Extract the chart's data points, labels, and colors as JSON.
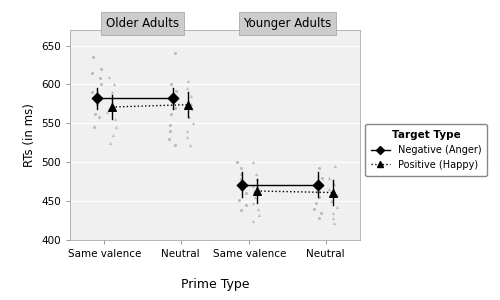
{
  "panels": [
    "Older Adults",
    "Younger Adults"
  ],
  "x_labels": [
    "Same valence",
    "Neutral"
  ],
  "ylabel": "RTs (in ms)",
  "xlabel": "Prime Type",
  "ylim": [
    400,
    670
  ],
  "yticks": [
    400,
    450,
    500,
    550,
    600,
    650
  ],
  "plot_bg": "#f0f0f0",
  "strip_bg": "#cccccc",
  "grid_color": "#ffffff",
  "scatter_color": "#bbbbbb",
  "older": {
    "negative": {
      "means": [
        582,
        582
      ],
      "ci_low": [
        568,
        568
      ],
      "ci_high": [
        596,
        596
      ],
      "scatter_x0": [
        545,
        558,
        562,
        575,
        590,
        600,
        608,
        615,
        620,
        635
      ],
      "scatter_x1": [
        522,
        530,
        540,
        548,
        562,
        570,
        582,
        592,
        600,
        640
      ]
    },
    "positive": {
      "means": [
        571,
        574
      ],
      "ci_low": [
        555,
        558
      ],
      "ci_high": [
        587,
        590
      ],
      "scatter_x0": [
        525,
        535,
        545,
        555,
        565,
        575,
        582,
        590,
        600,
        610
      ],
      "scatter_x1": [
        522,
        532,
        540,
        550,
        558,
        568,
        575,
        585,
        595,
        605
      ]
    }
  },
  "younger": {
    "negative": {
      "means": [
        471,
        471
      ],
      "ci_low": [
        455,
        455
      ],
      "ci_high": [
        487,
        487
      ],
      "scatter_x0": [
        438,
        445,
        452,
        460,
        465,
        472,
        478,
        485,
        492,
        500
      ],
      "scatter_x1": [
        428,
        435,
        440,
        448,
        455,
        462,
        468,
        475,
        480,
        492
      ]
    },
    "positive": {
      "means": [
        463,
        461
      ],
      "ci_low": [
        447,
        445
      ],
      "ci_high": [
        479,
        477
      ],
      "scatter_x0": [
        425,
        432,
        440,
        448,
        455,
        463,
        470,
        478,
        485,
        500
      ],
      "scatter_x1": [
        422,
        428,
        435,
        442,
        450,
        458,
        465,
        472,
        480,
        495
      ]
    }
  },
  "legend_title": "Target Type",
  "legend_neg": "Negative (Anger)",
  "legend_pos": "Positive (Happy)"
}
